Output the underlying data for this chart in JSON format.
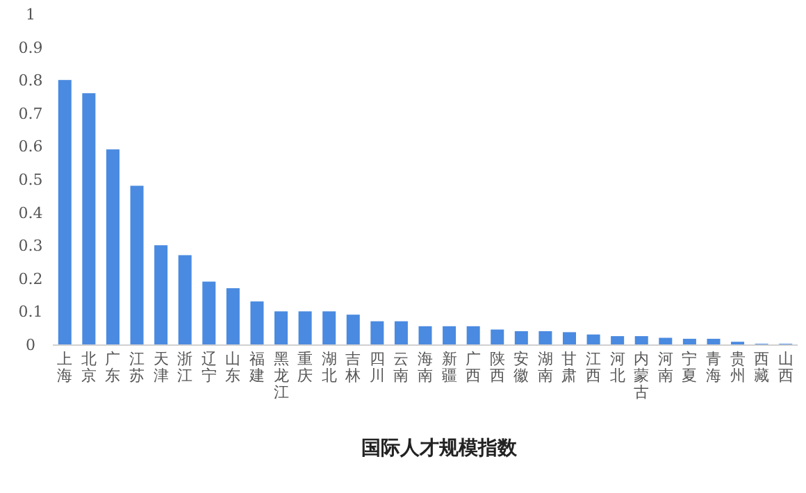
{
  "chart_data": {
    "type": "bar",
    "xlabel": "国际人才规模指数",
    "categories": [
      "上海",
      "北京",
      "广东",
      "江苏",
      "天津",
      "浙江",
      "辽宁",
      "山东",
      "福建",
      "黑龙江",
      "重庆",
      "湖北",
      "吉林",
      "四川",
      "云南",
      "海南",
      "新疆",
      "广西",
      "陕西",
      "安徽",
      "湖南",
      "甘肃",
      "江西",
      "河北",
      "内蒙古",
      "河南",
      "宁夏",
      "青海",
      "贵州",
      "西藏",
      "山西"
    ],
    "values": [
      0.8,
      0.76,
      0.59,
      0.48,
      0.3,
      0.27,
      0.19,
      0.17,
      0.13,
      0.1,
      0.1,
      0.1,
      0.09,
      0.07,
      0.07,
      0.055,
      0.055,
      0.055,
      0.045,
      0.04,
      0.04,
      0.037,
      0.03,
      0.025,
      0.025,
      0.02,
      0.017,
      0.017,
      0.008,
      0.002,
      0.002
    ],
    "color": "#4a8ae0",
    "ylim": [
      0,
      1
    ],
    "yticks": [
      0,
      0.1,
      0.2,
      0.3,
      0.4,
      0.5,
      0.6,
      0.7,
      0.8,
      0.9,
      1
    ],
    "grid": false
  }
}
